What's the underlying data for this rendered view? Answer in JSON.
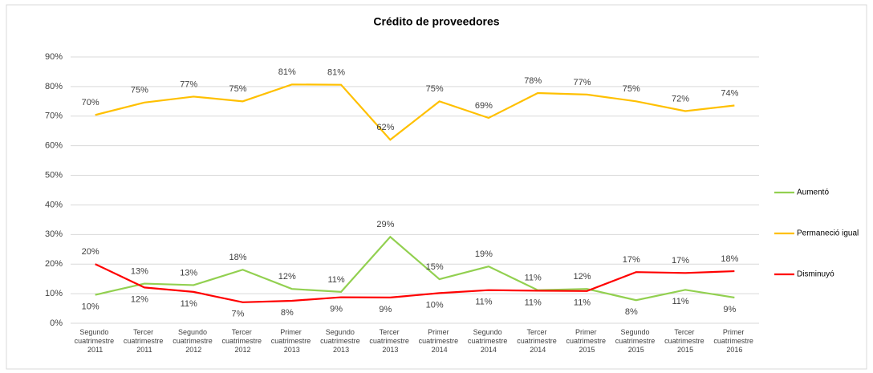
{
  "chart_data": {
    "type": "line",
    "title": "Crédito de proveedores",
    "categories": [
      "Segundo cuatrimestre 2011",
      "Tercer cuatrimestre 2011",
      "Segundo cuatrimestre 2012",
      "Tercer cuatrimestre 2012",
      "Primer cuatrimestre 2013",
      "Segundo cuatrimestre 2013",
      "Tercer cuatrimestre 2013",
      "Primer cuatrimestre 2014",
      "Segundo cuatrimestre 2014",
      "Tercer cuatrimestre 2014",
      "Primer cuatrimestre 2015",
      "Segundo cuatrimestre 2015",
      "Tercer cuatrimestre 2015",
      "Primer cuatrimestre 2016"
    ],
    "series": [
      {
        "name": "Aumentó",
        "color": "#92d050",
        "values": [
          9.6,
          13.4,
          12.9,
          18.1,
          11.6,
          10.6,
          29.2,
          14.9,
          19.2,
          11.2,
          11.6,
          7.8,
          11.3,
          8.7
        ],
        "value_labels": [
          "10%",
          "13%",
          "13%",
          "18%",
          "12%",
          "11%",
          "29%",
          "15%",
          "19%",
          "11%",
          "12%",
          "8%",
          "11%",
          "9%"
        ]
      },
      {
        "name": "Permaneció igual",
        "color": "#ffc000",
        "values": [
          70.4,
          74.6,
          76.6,
          75.0,
          80.7,
          80.6,
          62.0,
          75.0,
          69.4,
          77.8,
          77.3,
          75.0,
          71.7,
          73.6
        ],
        "value_labels": [
          "70%",
          "75%",
          "77%",
          "75%",
          "81%",
          "81%",
          "62%",
          "75%",
          "69%",
          "78%",
          "77%",
          "75%",
          "72%",
          "74%"
        ]
      },
      {
        "name": "Disminuyó",
        "color": "#ff0000",
        "values": [
          20.0,
          12.1,
          10.6,
          7.1,
          7.6,
          8.8,
          8.7,
          10.2,
          11.2,
          11.0,
          10.9,
          17.3,
          17.0,
          17.6
        ],
        "value_labels": [
          "20%",
          "12%",
          "11%",
          "7%",
          "8%",
          "9%",
          "9%",
          "10%",
          "11%",
          "11%",
          "11%",
          "17%",
          "17%",
          "18%"
        ]
      }
    ],
    "ylim": [
      0,
      90
    ],
    "yticks": [
      {
        "value": 0,
        "label": "0%"
      },
      {
        "value": 10,
        "label": "10%"
      },
      {
        "value": 20,
        "label": "20%"
      },
      {
        "value": 30,
        "label": "30%"
      },
      {
        "value": 40,
        "label": "40%"
      },
      {
        "value": 50,
        "label": "50%"
      },
      {
        "value": 60,
        "label": "60%"
      },
      {
        "value": 70,
        "label": "70%"
      },
      {
        "value": 80,
        "label": "80%"
      },
      {
        "value": 90,
        "label": "90%"
      }
    ],
    "grid": true,
    "legend": "right"
  }
}
